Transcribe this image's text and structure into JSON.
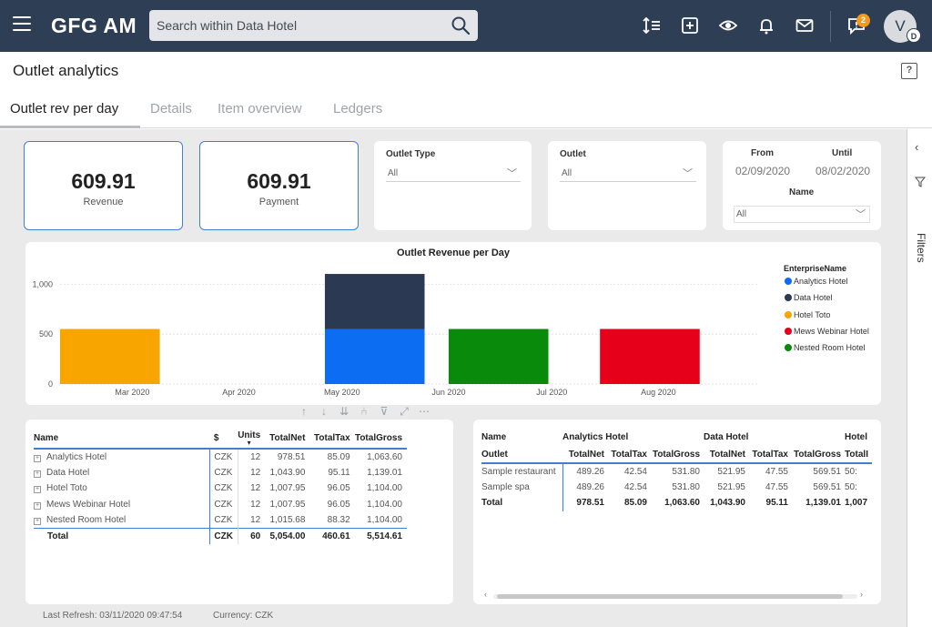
{
  "app": {
    "brand": "GFG AM"
  },
  "search": {
    "placeholder": "Search within Data Hotel"
  },
  "header_icons": [
    "sort-icon",
    "add-icon",
    "eye-icon",
    "bell-icon",
    "mail-icon",
    "chat-icon"
  ],
  "notifications": {
    "count": "2"
  },
  "user": {
    "initial": "V",
    "sub_initial": "D"
  },
  "page": {
    "title": "Outlet analytics",
    "help": "?"
  },
  "tabs": [
    {
      "label": "Outlet rev per day",
      "active": true
    },
    {
      "label": "Details",
      "active": false
    },
    {
      "label": "Item overview",
      "active": false
    },
    {
      "label": "Ledgers",
      "active": false
    }
  ],
  "kpis": [
    {
      "value": "609.91",
      "label": "Revenue"
    },
    {
      "value": "609.91",
      "label": "Payment"
    }
  ],
  "slicers": {
    "outlet_type": {
      "label": "Outlet Type",
      "value": "All"
    },
    "outlet": {
      "label": "Outlet",
      "value": "All"
    },
    "dates": {
      "from_label": "From",
      "until_label": "Until",
      "from_value": "02/09/2020",
      "until_value": "08/02/2020"
    },
    "name": {
      "label": "Name",
      "value": "All"
    }
  },
  "filters_pane": {
    "label": "Filters"
  },
  "chart_data": {
    "type": "bar",
    "stacked": true,
    "title": "Outlet Revenue per Day",
    "xlabel": "",
    "ylabel": "",
    "y_ticks": [
      "0",
      "500",
      "1,000"
    ],
    "ylim": [
      0,
      1150
    ],
    "x_ticks": [
      "Mar 2020",
      "Apr 2020",
      "May 2020",
      "Jun 2020",
      "Jul 2020",
      "Aug 2020"
    ],
    "legend_title": "EnterpriseName",
    "legend_position": "right",
    "series": [
      {
        "name": "Analytics Hotel",
        "color": "#0c6cf2"
      },
      {
        "name": "Data Hotel",
        "color": "#2b3a52"
      },
      {
        "name": "Hotel Toto",
        "color": "#f8a500"
      },
      {
        "name": "Mews Webinar Hotel",
        "color": "#e6001a"
      },
      {
        "name": "Nested Room Hotel",
        "color": "#0a8a0a"
      }
    ],
    "bars": [
      {
        "x_start": "2020-02-09",
        "x_end": "2020-03-09",
        "segments": [
          {
            "series": "Hotel Toto",
            "value": 552
          }
        ]
      },
      {
        "x_start": "2020-04-26",
        "x_end": "2020-05-25",
        "segments": [
          {
            "series": "Analytics Hotel",
            "value": 552
          },
          {
            "series": "Data Hotel",
            "value": 552
          }
        ]
      },
      {
        "x_start": "2020-06-01",
        "x_end": "2020-06-30",
        "segments": [
          {
            "series": "Nested Room Hotel",
            "value": 552
          }
        ]
      },
      {
        "x_start": "2020-07-15",
        "x_end": "2020-08-13",
        "segments": [
          {
            "series": "Mews Webinar Hotel",
            "value": 552
          }
        ]
      }
    ],
    "x_range": [
      "2020-02-09",
      "2020-08-30"
    ]
  },
  "visual_toolbar": [
    "↑",
    "↓",
    "⇊",
    "⑃",
    "⊽",
    "⤢",
    "⋯"
  ],
  "table1": {
    "headers": [
      "Name",
      "$",
      "Units",
      "TotalNet",
      "TotalTax",
      "TotalGross"
    ],
    "rows": [
      [
        "Analytics Hotel",
        "CZK",
        "12",
        "978.51",
        "85.09",
        "1,063.60"
      ],
      [
        "Data Hotel",
        "CZK",
        "12",
        "1,043.90",
        "95.11",
        "1,139.01"
      ],
      [
        "Hotel Toto",
        "CZK",
        "12",
        "1,007.95",
        "96.05",
        "1,104.00"
      ],
      [
        "Mews Webinar Hotel",
        "CZK",
        "12",
        "1,007.95",
        "96.05",
        "1,104.00"
      ],
      [
        "Nested Room Hotel",
        "CZK",
        "12",
        "1,015.68",
        "88.32",
        "1,104.00"
      ]
    ],
    "total": [
      "Total",
      "CZK",
      "60",
      "5,054.00",
      "460.61",
      "5,514.61"
    ],
    "expander": "+"
  },
  "table2": {
    "top_headers": [
      "Name",
      "Analytics Hotel",
      "Data Hotel",
      "Hotel"
    ],
    "sub_headers": [
      "Outlet",
      "TotalNet",
      "TotalTax",
      "TotalGross",
      "TotalNet",
      "TotalTax",
      "TotalGross",
      "TotalI"
    ],
    "rows": [
      [
        "Sample restaurant",
        "489.26",
        "42.54",
        "531.80",
        "521.95",
        "47.55",
        "569.51",
        "50:"
      ],
      [
        "Sample spa",
        "489.26",
        "42.54",
        "531.80",
        "521.95",
        "47.55",
        "569.51",
        "50:"
      ]
    ],
    "total": [
      "Total",
      "978.51",
      "85.09",
      "1,063.60",
      "1,043.90",
      "95.11",
      "1,139.01",
      "1,007"
    ]
  },
  "footer": {
    "last_refresh": "Last Refresh: 03/11/2020 09:47:54",
    "currency": "Currency: CZK"
  }
}
